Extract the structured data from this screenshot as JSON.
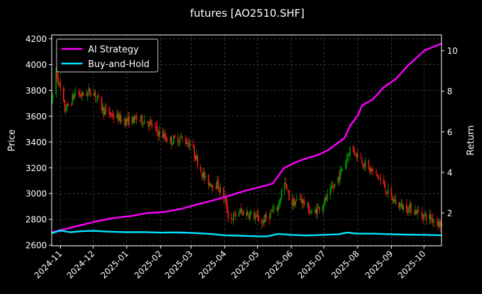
{
  "chart_data": {
    "type": "line",
    "title": "futures [AO2510.SHF]",
    "ylabel_left": "Price",
    "ylabel_right": "Return",
    "ylim_left": [
      2595,
      4230
    ],
    "ylim_right": [
      0.38,
      10.78
    ],
    "xlim": [
      "2024-10-24",
      "2025-10-17"
    ],
    "grid": true,
    "legend_position": "top-left",
    "colors": {
      "background": "#000000",
      "ai_strategy": "#ff00ff",
      "buy_and_hold": "#00e5ff",
      "candle_up": "#00a000",
      "candle_down": "#ff1a1a",
      "grid": "#5a5a5a"
    },
    "x_ticks": [
      "2024-11",
      "2024-12",
      "2025-01",
      "2025-02",
      "2025-03",
      "2025-04",
      "2025-05",
      "2025-06",
      "2025-07",
      "2025-08",
      "2025-09",
      "2025-10"
    ],
    "x_tick_dates": [
      "2024-11-01",
      "2024-12-01",
      "2025-01-01",
      "2025-02-01",
      "2025-03-01",
      "2025-04-01",
      "2025-05-01",
      "2025-06-01",
      "2025-07-01",
      "2025-08-01",
      "2025-09-01",
      "2025-10-01"
    ],
    "y_ticks_left": [
      2600,
      2800,
      3000,
      3200,
      3400,
      3600,
      3800,
      4000,
      4200
    ],
    "y_ticks_right": [
      2,
      4,
      6,
      8,
      10
    ],
    "series": [
      {
        "name": "AI Strategy",
        "axis": "right",
        "points": [
          [
            "2024-10-24",
            1.05
          ],
          [
            "2024-11-05",
            1.2
          ],
          [
            "2024-11-20",
            1.4
          ],
          [
            "2024-12-05",
            1.6
          ],
          [
            "2024-12-20",
            1.75
          ],
          [
            "2025-01-05",
            1.85
          ],
          [
            "2025-01-20",
            2.0
          ],
          [
            "2025-02-05",
            2.05
          ],
          [
            "2025-02-20",
            2.2
          ],
          [
            "2025-03-05",
            2.4
          ],
          [
            "2025-03-20",
            2.6
          ],
          [
            "2025-04-05",
            2.85
          ],
          [
            "2025-04-20",
            3.1
          ],
          [
            "2025-05-05",
            3.3
          ],
          [
            "2025-05-15",
            3.45
          ],
          [
            "2025-05-25",
            4.2
          ],
          [
            "2025-06-05",
            4.5
          ],
          [
            "2025-06-15",
            4.7
          ],
          [
            "2025-06-25",
            4.85
          ],
          [
            "2025-07-05",
            5.1
          ],
          [
            "2025-07-15",
            5.5
          ],
          [
            "2025-07-20",
            5.7
          ],
          [
            "2025-07-25",
            6.3
          ],
          [
            "2025-08-01",
            6.8
          ],
          [
            "2025-08-05",
            7.3
          ],
          [
            "2025-08-15",
            7.6
          ],
          [
            "2025-08-25",
            8.2
          ],
          [
            "2025-09-05",
            8.6
          ],
          [
            "2025-09-15",
            9.2
          ],
          [
            "2025-09-25",
            9.7
          ],
          [
            "2025-10-01",
            10.0
          ],
          [
            "2025-10-10",
            10.2
          ],
          [
            "2025-10-17",
            10.35
          ]
        ]
      },
      {
        "name": "Buy-and-Hold",
        "axis": "right",
        "points": [
          [
            "2024-10-24",
            1.0
          ],
          [
            "2024-11-01",
            1.13
          ],
          [
            "2024-11-10",
            1.05
          ],
          [
            "2024-11-20",
            1.1
          ],
          [
            "2024-12-01",
            1.12
          ],
          [
            "2024-12-15",
            1.08
          ],
          [
            "2025-01-01",
            1.05
          ],
          [
            "2025-01-15",
            1.06
          ],
          [
            "2025-02-01",
            1.03
          ],
          [
            "2025-02-15",
            1.04
          ],
          [
            "2025-03-01",
            1.02
          ],
          [
            "2025-03-15",
            0.98
          ],
          [
            "2025-04-01",
            0.9
          ],
          [
            "2025-04-15",
            0.88
          ],
          [
            "2025-05-01",
            0.85
          ],
          [
            "2025-05-10",
            0.85
          ],
          [
            "2025-05-20",
            0.97
          ],
          [
            "2025-06-01",
            0.92
          ],
          [
            "2025-06-15",
            0.89
          ],
          [
            "2025-07-01",
            0.92
          ],
          [
            "2025-07-15",
            0.95
          ],
          [
            "2025-07-22",
            1.03
          ],
          [
            "2025-08-01",
            0.98
          ],
          [
            "2025-08-15",
            0.98
          ],
          [
            "2025-09-01",
            0.95
          ],
          [
            "2025-09-15",
            0.93
          ],
          [
            "2025-10-01",
            0.92
          ],
          [
            "2025-10-17",
            0.9
          ]
        ]
      },
      {
        "name": "Price",
        "axis": "left",
        "type": "candlestick",
        "points": [
          [
            "2024-10-24",
            3700
          ],
          [
            "2024-10-28",
            3950
          ],
          [
            "2024-11-01",
            3800
          ],
          [
            "2024-11-05",
            3650
          ],
          [
            "2024-11-10",
            3700
          ],
          [
            "2024-11-15",
            3790
          ],
          [
            "2024-11-20",
            3760
          ],
          [
            "2024-12-01",
            3800
          ],
          [
            "2024-12-10",
            3650
          ],
          [
            "2024-12-20",
            3600
          ],
          [
            "2025-01-01",
            3560
          ],
          [
            "2025-01-10",
            3580
          ],
          [
            "2025-01-20",
            3560
          ],
          [
            "2025-02-01",
            3460
          ],
          [
            "2025-02-10",
            3410
          ],
          [
            "2025-02-20",
            3430
          ],
          [
            "2025-03-01",
            3380
          ],
          [
            "2025-03-05",
            3290
          ],
          [
            "2025-03-10",
            3180
          ],
          [
            "2025-03-15",
            3090
          ],
          [
            "2025-03-25",
            3070
          ],
          [
            "2025-04-01",
            2960
          ],
          [
            "2025-04-05",
            2790
          ],
          [
            "2025-04-15",
            2860
          ],
          [
            "2025-04-25",
            2840
          ],
          [
            "2025-05-05",
            2780
          ],
          [
            "2025-05-10",
            2820
          ],
          [
            "2025-05-20",
            2900
          ],
          [
            "2025-05-25",
            3100
          ],
          [
            "2025-06-01",
            2920
          ],
          [
            "2025-06-10",
            2960
          ],
          [
            "2025-06-20",
            2840
          ],
          [
            "2025-07-01",
            2930
          ],
          [
            "2025-07-10",
            3050
          ],
          [
            "2025-07-20",
            3230
          ],
          [
            "2025-07-25",
            3350
          ],
          [
            "2025-08-01",
            3300
          ],
          [
            "2025-08-10",
            3200
          ],
          [
            "2025-08-20",
            3130
          ],
          [
            "2025-09-01",
            2960
          ],
          [
            "2025-09-10",
            2900
          ],
          [
            "2025-09-20",
            2880
          ],
          [
            "2025-10-01",
            2830
          ],
          [
            "2025-10-10",
            2800
          ],
          [
            "2025-10-17",
            2760
          ]
        ]
      }
    ]
  }
}
